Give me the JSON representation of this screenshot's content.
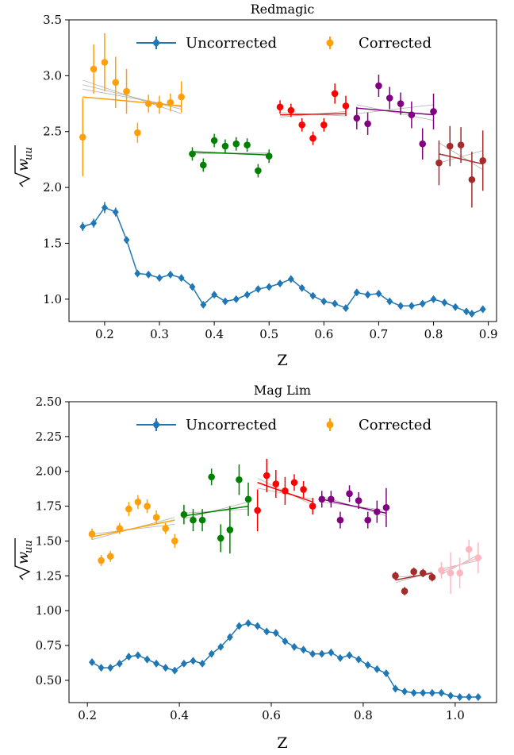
{
  "chart_data": [
    {
      "type": "scatter",
      "title": "Redmagic",
      "xlabel": "Z",
      "ylabel": "√w_uu",
      "xlim": [
        0.135,
        0.915
      ],
      "ylim": [
        0.8,
        3.5
      ],
      "x_ticks": [
        0.2,
        0.3,
        0.4,
        0.5,
        0.6,
        0.7,
        0.8,
        0.9
      ],
      "x_tick_labels": [
        "0.2",
        "0.3",
        "0.4",
        "0.5",
        "0.6",
        "0.7",
        "0.8",
        "0.9"
      ],
      "y_ticks": [
        1.0,
        1.5,
        2.0,
        2.5,
        3.0,
        3.5
      ],
      "y_tick_labels": [
        "1.0",
        "1.5",
        "2.0",
        "2.5",
        "3.0",
        "3.5"
      ],
      "legend": {
        "position": "top",
        "entries": [
          "Uncorrected",
          "Corrected"
        ]
      },
      "grid": false,
      "uncorrected": {
        "name": "Uncorrected",
        "color": "#1f77b4",
        "marker": "diamond",
        "x": [
          0.16,
          0.18,
          0.2,
          0.22,
          0.24,
          0.26,
          0.28,
          0.3,
          0.32,
          0.34,
          0.36,
          0.38,
          0.4,
          0.42,
          0.44,
          0.46,
          0.48,
          0.5,
          0.52,
          0.54,
          0.56,
          0.58,
          0.6,
          0.62,
          0.64,
          0.66,
          0.68,
          0.7,
          0.72,
          0.74,
          0.76,
          0.78,
          0.8,
          0.82,
          0.84,
          0.86,
          0.87,
          0.89
        ],
        "y": [
          1.65,
          1.68,
          1.82,
          1.78,
          1.53,
          1.23,
          1.22,
          1.19,
          1.22,
          1.19,
          1.11,
          0.95,
          1.04,
          0.98,
          1.0,
          1.04,
          1.09,
          1.11,
          1.14,
          1.18,
          1.1,
          1.03,
          0.98,
          0.96,
          0.92,
          1.06,
          1.04,
          1.05,
          0.98,
          0.94,
          0.94,
          0.96,
          1.0,
          0.97,
          0.93,
          0.89,
          0.87,
          0.91
        ],
        "err": [
          0.04,
          0.04,
          0.05,
          0.04,
          0.03,
          0.02,
          0.02,
          0.02,
          0.02,
          0.02,
          0.02,
          0.02,
          0.02,
          0.02,
          0.02,
          0.02,
          0.02,
          0.02,
          0.02,
          0.02,
          0.02,
          0.02,
          0.02,
          0.02,
          0.02,
          0.02,
          0.02,
          0.02,
          0.02,
          0.02,
          0.02,
          0.02,
          0.02,
          0.02,
          0.02,
          0.02,
          0.02,
          0.02
        ]
      },
      "corrected_groups": [
        {
          "color": "#ff9f0a",
          "x": [
            0.16,
            0.18,
            0.2,
            0.22,
            0.24,
            0.26,
            0.28,
            0.3,
            0.32,
            0.34
          ],
          "y": [
            2.45,
            3.06,
            3.12,
            2.94,
            2.86,
            2.49,
            2.75,
            2.74,
            2.76,
            2.81
          ],
          "err": [
            0.35,
            0.22,
            0.26,
            0.23,
            0.2,
            0.09,
            0.08,
            0.08,
            0.08,
            0.14
          ],
          "fit": [
            [
              0.16,
              2.81
            ],
            [
              0.34,
              2.73
            ]
          ],
          "alt_fits": [
            [
              [
                0.16,
                2.96
              ],
              [
                0.34,
                2.66
              ]
            ],
            [
              [
                0.16,
                2.88
              ],
              [
                0.34,
                2.72
              ]
            ],
            [
              [
                0.16,
                2.92
              ],
              [
                0.34,
                2.7
              ]
            ]
          ]
        },
        {
          "color": "#008000",
          "x": [
            0.36,
            0.38,
            0.4,
            0.42,
            0.44,
            0.46,
            0.48,
            0.5
          ],
          "y": [
            2.3,
            2.2,
            2.42,
            2.37,
            2.39,
            2.38,
            2.15,
            2.28
          ],
          "err": [
            0.06,
            0.06,
            0.06,
            0.06,
            0.06,
            0.06,
            0.06,
            0.06
          ],
          "fit": [
            [
              0.36,
              2.32
            ],
            [
              0.5,
              2.29
            ]
          ],
          "alt_fits": [
            [
              [
                0.36,
                2.31
              ],
              [
                0.5,
                2.3
              ]
            ],
            [
              [
                0.36,
                2.3
              ],
              [
                0.5,
                2.31
              ]
            ]
          ]
        },
        {
          "color": "#ff0000",
          "x": [
            0.52,
            0.54,
            0.56,
            0.58,
            0.6,
            0.62,
            0.64
          ],
          "y": [
            2.72,
            2.69,
            2.56,
            2.44,
            2.56,
            2.84,
            2.73
          ],
          "err": [
            0.06,
            0.06,
            0.06,
            0.06,
            0.06,
            0.09,
            0.09
          ],
          "fit": [
            [
              0.52,
              2.65
            ],
            [
              0.64,
              2.66
            ]
          ],
          "alt_fits": [
            [
              [
                0.52,
                2.63
              ],
              [
                0.64,
                2.68
              ]
            ],
            [
              [
                0.52,
                2.67
              ],
              [
                0.64,
                2.64
              ]
            ]
          ]
        },
        {
          "color": "#800080",
          "x": [
            0.66,
            0.68,
            0.7,
            0.72,
            0.74,
            0.76,
            0.78,
            0.8
          ],
          "y": [
            2.62,
            2.57,
            2.91,
            2.8,
            2.75,
            2.65,
            2.39,
            2.68
          ],
          "err": [
            0.1,
            0.1,
            0.1,
            0.1,
            0.1,
            0.12,
            0.14,
            0.16
          ],
          "fit": [
            [
              0.66,
              2.71
            ],
            [
              0.8,
              2.65
            ]
          ],
          "alt_fits": [
            [
              [
                0.66,
                2.66
              ],
              [
                0.8,
                2.74
              ]
            ],
            [
              [
                0.66,
                2.74
              ],
              [
                0.8,
                2.6
              ]
            ]
          ]
        },
        {
          "color": "#a52a2a",
          "x": [
            0.81,
            0.83,
            0.85,
            0.87,
            0.89
          ],
          "y": [
            2.22,
            2.37,
            2.38,
            2.07,
            2.24
          ],
          "err": [
            0.2,
            0.18,
            0.16,
            0.25,
            0.27
          ],
          "fit": [
            [
              0.81,
              2.3
            ],
            [
              0.89,
              2.21
            ]
          ],
          "alt_fits": [
            [
              [
                0.81,
                2.4
              ],
              [
                0.89,
                2.16
              ]
            ],
            [
              [
                0.81,
                2.22
              ],
              [
                0.89,
                2.33
              ]
            ]
          ]
        }
      ]
    },
    {
      "type": "scatter",
      "title": "Mag Lim",
      "xlabel": "Z",
      "ylabel": "√w_uu",
      "xlim": [
        0.16,
        1.09
      ],
      "ylim": [
        0.34,
        2.5
      ],
      "x_ticks": [
        0.2,
        0.4,
        0.6,
        0.8,
        1.0
      ],
      "x_tick_labels": [
        "0.2",
        "0.4",
        "0.6",
        "0.8",
        "1.0"
      ],
      "y_ticks": [
        0.5,
        0.75,
        1.0,
        1.25,
        1.5,
        1.75,
        2.0,
        2.25,
        2.5
      ],
      "y_tick_labels": [
        "0.50",
        "0.75",
        "1.00",
        "1.25",
        "1.50",
        "1.75",
        "2.00",
        "2.25",
        "2.50"
      ],
      "legend": {
        "position": "top",
        "entries": [
          "Uncorrected",
          "Corrected"
        ]
      },
      "grid": false,
      "uncorrected": {
        "name": "Uncorrected",
        "color": "#1f77b4",
        "marker": "diamond",
        "x": [
          0.21,
          0.23,
          0.25,
          0.27,
          0.29,
          0.31,
          0.33,
          0.35,
          0.37,
          0.39,
          0.41,
          0.43,
          0.45,
          0.47,
          0.49,
          0.51,
          0.53,
          0.55,
          0.57,
          0.59,
          0.61,
          0.63,
          0.65,
          0.67,
          0.69,
          0.71,
          0.73,
          0.75,
          0.77,
          0.79,
          0.81,
          0.83,
          0.85,
          0.87,
          0.89,
          0.91,
          0.93,
          0.95,
          0.97,
          0.99,
          1.01,
          1.03,
          1.05
        ],
        "y": [
          0.63,
          0.59,
          0.59,
          0.62,
          0.67,
          0.68,
          0.65,
          0.62,
          0.59,
          0.57,
          0.62,
          0.64,
          0.62,
          0.69,
          0.74,
          0.81,
          0.89,
          0.91,
          0.89,
          0.85,
          0.84,
          0.78,
          0.74,
          0.72,
          0.69,
          0.69,
          0.7,
          0.66,
          0.68,
          0.65,
          0.61,
          0.58,
          0.55,
          0.44,
          0.42,
          0.41,
          0.41,
          0.41,
          0.41,
          0.39,
          0.38,
          0.38,
          0.38
        ],
        "err": [
          0.02,
          0.02,
          0.02,
          0.02,
          0.02,
          0.02,
          0.02,
          0.02,
          0.02,
          0.02,
          0.02,
          0.02,
          0.02,
          0.02,
          0.02,
          0.02,
          0.02,
          0.02,
          0.02,
          0.02,
          0.02,
          0.02,
          0.02,
          0.02,
          0.02,
          0.02,
          0.02,
          0.02,
          0.02,
          0.02,
          0.02,
          0.02,
          0.02,
          0.02,
          0.02,
          0.02,
          0.02,
          0.02,
          0.02,
          0.02,
          0.02,
          0.02,
          0.02
        ]
      },
      "corrected_groups": [
        {
          "color": "#ff9f0a",
          "x": [
            0.21,
            0.23,
            0.25,
            0.27,
            0.29,
            0.31,
            0.33,
            0.35,
            0.37,
            0.39
          ],
          "y": [
            1.55,
            1.36,
            1.39,
            1.59,
            1.73,
            1.78,
            1.75,
            1.67,
            1.59,
            1.5
          ],
          "err": [
            0.04,
            0.04,
            0.04,
            0.04,
            0.05,
            0.05,
            0.05,
            0.05,
            0.04,
            0.05
          ],
          "fit": [
            [
              0.21,
              1.53
            ],
            [
              0.39,
              1.65
            ]
          ],
          "alt_fits": [
            [
              [
                0.21,
                1.51
              ],
              [
                0.39,
                1.67
              ]
            ],
            [
              [
                0.21,
                1.55
              ],
              [
                0.39,
                1.62
              ]
            ]
          ]
        },
        {
          "color": "#008000",
          "x": [
            0.41,
            0.43,
            0.45,
            0.47,
            0.49,
            0.51,
            0.53,
            0.55
          ],
          "y": [
            1.69,
            1.65,
            1.65,
            1.96,
            1.52,
            1.58,
            1.94,
            1.8
          ],
          "err": [
            0.07,
            0.08,
            0.08,
            0.06,
            0.1,
            0.17,
            0.11,
            0.12
          ],
          "fit": [
            [
              0.41,
              1.68
            ],
            [
              0.55,
              1.75
            ]
          ],
          "alt_fits": [
            [
              [
                0.41,
                1.7
              ],
              [
                0.55,
                1.73
              ]
            ],
            [
              [
                0.41,
                1.66
              ],
              [
                0.55,
                1.78
              ]
            ]
          ]
        },
        {
          "color": "#ff0000",
          "x": [
            0.57,
            0.59,
            0.61,
            0.63,
            0.65,
            0.67,
            0.69
          ],
          "y": [
            1.72,
            1.97,
            1.91,
            1.86,
            1.92,
            1.87,
            1.75
          ],
          "err": [
            0.15,
            0.12,
            0.1,
            0.1,
            0.06,
            0.06,
            0.06
          ],
          "fit": [
            [
              0.57,
              1.92
            ],
            [
              0.69,
              1.78
            ]
          ],
          "alt_fits": [
            [
              [
                0.57,
                1.88
              ],
              [
                0.69,
                1.8
              ]
            ],
            [
              [
                0.57,
                1.95
              ],
              [
                0.69,
                1.76
              ]
            ]
          ]
        },
        {
          "color": "#800080",
          "x": [
            0.71,
            0.73,
            0.75,
            0.77,
            0.79,
            0.81,
            0.83,
            0.85
          ],
          "y": [
            1.8,
            1.8,
            1.65,
            1.84,
            1.79,
            1.65,
            1.71,
            1.74
          ],
          "err": [
            0.06,
            0.06,
            0.06,
            0.06,
            0.06,
            0.06,
            0.08,
            0.14
          ],
          "fit": [
            [
              0.71,
              1.8
            ],
            [
              0.85,
              1.7
            ]
          ],
          "alt_fits": [
            [
              [
                0.71,
                1.78
              ],
              [
                0.85,
                1.72
              ]
            ],
            [
              [
                0.71,
                1.82
              ],
              [
                0.85,
                1.68
              ]
            ]
          ]
        },
        {
          "color": "#a52a2a",
          "x": [
            0.87,
            0.89,
            0.91,
            0.93,
            0.95
          ],
          "y": [
            1.25,
            1.14,
            1.28,
            1.27,
            1.24
          ],
          "err": [
            0.03,
            0.03,
            0.03,
            0.03,
            0.03
          ],
          "fit": [
            [
              0.87,
              1.22
            ],
            [
              0.95,
              1.27
            ]
          ],
          "alt_fits": [
            [
              [
                0.87,
                1.2
              ],
              [
                0.95,
                1.28
              ]
            ],
            [
              [
                0.87,
                1.24
              ],
              [
                0.95,
                1.26
              ]
            ]
          ]
        },
        {
          "color": "#ffb6c1",
          "x": [
            0.97,
            0.99,
            1.01,
            1.03,
            1.05
          ],
          "y": [
            1.29,
            1.27,
            1.27,
            1.44,
            1.38
          ],
          "err": [
            0.06,
            0.15,
            0.11,
            0.07,
            0.11
          ],
          "fit": [
            [
              0.97,
              1.28
            ],
            [
              1.05,
              1.38
            ]
          ],
          "alt_fits": [
            [
              [
                0.97,
                1.3
              ],
              [
                1.05,
                1.36
              ]
            ],
            [
              [
                0.97,
                1.26
              ],
              [
                1.05,
                1.4
              ]
            ]
          ]
        }
      ]
    }
  ]
}
